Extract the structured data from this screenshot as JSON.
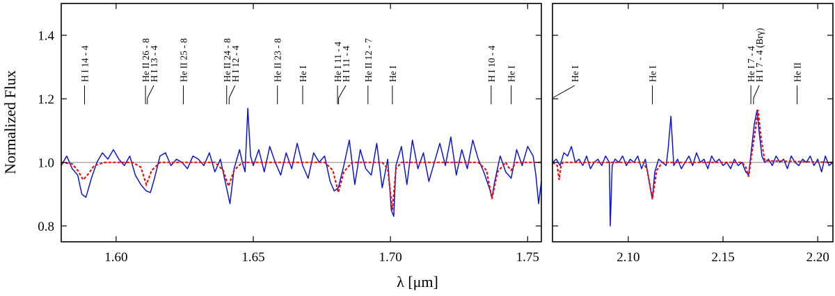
{
  "chart_data": {
    "type": "line",
    "ylabel": "Normalized Flux",
    "xlabel": "λ [μm]",
    "colors": {
      "observed": "#0a14d8",
      "model": "#e8100e",
      "continuum": "#a8a8a8",
      "frame": "#000000"
    },
    "panels": [
      {
        "id": "H-band",
        "xlim": [
          1.58,
          1.755
        ],
        "ylim": [
          0.75,
          1.5
        ],
        "xticks": [
          1.6,
          1.65,
          1.7,
          1.75
        ],
        "xtick_labels": [
          "1.60",
          "1.65",
          "1.70",
          "1.75"
        ],
        "yticks": [
          0.8,
          1.0,
          1.2,
          1.4
        ],
        "ytick_labels": [
          "0.8",
          "1.0",
          "1.2",
          "1.4"
        ],
        "continuum": 1.0,
        "lines": [
          {
            "label": "H I 14 - 4",
            "x": 1.5885
          },
          {
            "label": "He II 26 - 8",
            "x": 1.6107
          },
          {
            "label": "H I 13 - 4",
            "x": 1.6114
          },
          {
            "label": "He II 25 - 8",
            "x": 1.6245
          },
          {
            "label": "He II 24 - 8",
            "x": 1.6403
          },
          {
            "label": "H I 12 - 4",
            "x": 1.6412
          },
          {
            "label": "He II 23 - 8",
            "x": 1.6588
          },
          {
            "label": "He I",
            "x": 1.668
          },
          {
            "label": "He I 11 - 4",
            "x": 1.6807
          },
          {
            "label": "H I 11 - 4",
            "x": 1.6811
          },
          {
            "label": "He II 12 - 7",
            "x": 1.6918
          },
          {
            "label": "He I",
            "x": 1.7007
          },
          {
            "label": "H I 10 - 4",
            "x": 1.7367
          },
          {
            "label": "He I",
            "x": 1.744
          }
        ],
        "model": {
          "name": "model",
          "x": [
            1.58,
            1.584,
            1.586,
            1.588,
            1.59,
            1.592,
            1.596,
            1.606,
            1.609,
            1.611,
            1.613,
            1.616,
            1.636,
            1.639,
            1.641,
            1.643,
            1.646,
            1.676,
            1.679,
            1.681,
            1.683,
            1.686,
            1.697,
            1.699,
            1.7007,
            1.702,
            1.704,
            1.732,
            1.735,
            1.737,
            1.739,
            1.742,
            1.743,
            1.744,
            1.745,
            1.746,
            1.755
          ],
          "y": [
            1.0,
            0.995,
            0.975,
            0.945,
            0.965,
            0.99,
            1.0,
            1.0,
            0.985,
            0.93,
            0.975,
            1.0,
            1.0,
            0.975,
            0.925,
            0.975,
            1.0,
            1.0,
            0.975,
            0.905,
            0.97,
            1.0,
            1.0,
            0.98,
            0.85,
            0.98,
            1.0,
            1.0,
            0.975,
            0.885,
            0.97,
            1.0,
            0.985,
            0.975,
            0.99,
            1.0,
            1.0
          ]
        },
        "observed": {
          "name": "observed",
          "x": [
            1.58,
            1.582,
            1.584,
            1.586,
            1.5875,
            1.589,
            1.591,
            1.593,
            1.595,
            1.597,
            1.599,
            1.601,
            1.603,
            1.605,
            1.607,
            1.609,
            1.611,
            1.6125,
            1.614,
            1.616,
            1.618,
            1.62,
            1.622,
            1.624,
            1.626,
            1.628,
            1.63,
            1.632,
            1.634,
            1.636,
            1.638,
            1.64,
            1.6415,
            1.643,
            1.645,
            1.646,
            1.647,
            1.648,
            1.649,
            1.65,
            1.652,
            1.654,
            1.656,
            1.658,
            1.66,
            1.662,
            1.664,
            1.666,
            1.668,
            1.67,
            1.672,
            1.674,
            1.676,
            1.678,
            1.6795,
            1.681,
            1.683,
            1.685,
            1.687,
            1.689,
            1.691,
            1.693,
            1.695,
            1.697,
            1.699,
            1.7003,
            1.7012,
            1.702,
            1.704,
            1.706,
            1.708,
            1.71,
            1.712,
            1.714,
            1.716,
            1.718,
            1.72,
            1.722,
            1.724,
            1.726,
            1.728,
            1.73,
            1.732,
            1.734,
            1.736,
            1.737,
            1.738,
            1.74,
            1.742,
            1.744,
            1.746,
            1.748,
            1.75,
            1.752,
            1.753,
            1.754,
            1.755
          ],
          "y": [
            0.99,
            1.02,
            0.98,
            0.96,
            0.9,
            0.89,
            0.95,
            1.0,
            1.03,
            1.01,
            1.04,
            1.01,
            0.99,
            1.02,
            0.96,
            0.93,
            0.91,
            0.905,
            0.95,
            1.02,
            1.03,
            0.99,
            1.01,
            1.0,
            0.98,
            1.02,
            1.01,
            0.99,
            1.03,
            0.97,
            1.01,
            0.93,
            0.87,
            0.98,
            1.04,
            1.0,
            0.97,
            1.17,
            1.02,
            0.99,
            1.04,
            0.97,
            1.05,
            1.0,
            0.96,
            1.03,
            0.98,
            1.06,
            0.99,
            0.95,
            1.03,
            1.0,
            1.02,
            0.94,
            0.91,
            0.92,
            0.99,
            1.07,
            0.93,
            1.04,
            0.98,
            0.96,
            1.06,
            0.92,
            1.01,
            0.85,
            0.83,
            0.99,
            1.05,
            0.93,
            1.07,
            0.98,
            1.03,
            0.94,
            1.0,
            1.06,
            0.99,
            1.08,
            0.96,
            1.04,
            0.98,
            1.07,
            1.01,
            0.97,
            0.92,
            0.89,
            0.94,
            1.02,
            0.97,
            0.95,
            1.04,
            0.99,
            1.05,
            1.02,
            0.96,
            0.87,
            0.94
          ]
        }
      },
      {
        "id": "K-band",
        "xlim": [
          2.06,
          2.208
        ],
        "ylim": [
          0.75,
          1.5
        ],
        "xticks": [
          2.1,
          2.15,
          2.2
        ],
        "xtick_labels": [
          "2.10",
          "2.15",
          "2.20"
        ],
        "yticks": [
          0.8,
          1.0,
          1.2,
          1.4
        ],
        "continuum": 1.0,
        "lines": [
          {
            "label": "He I",
            "x": 2.06
          },
          {
            "label": "He I",
            "x": 2.1127
          },
          {
            "label": "He I 7 - 4",
            "x": 2.1647
          },
          {
            "label": "H I 7 - 4 (Brγ)",
            "x": 2.1661
          },
          {
            "label": "He II",
            "x": 2.1891
          }
        ],
        "model": {
          "name": "model",
          "x": [
            2.06,
            2.0625,
            2.0635,
            2.0645,
            2.0655,
            2.068,
            2.108,
            2.11,
            2.1127,
            2.115,
            2.118,
            2.16,
            2.162,
            2.1635,
            2.165,
            2.1665,
            2.1685,
            2.17,
            2.172,
            2.208
          ],
          "y": [
            1.0,
            0.99,
            0.945,
            0.99,
            1.0,
            1.0,
            1.0,
            0.975,
            0.885,
            0.975,
            1.0,
            1.0,
            0.985,
            0.955,
            1.02,
            1.08,
            1.165,
            1.08,
            1.005,
            1.0
          ]
        },
        "observed": {
          "name": "observed",
          "x": [
            2.06,
            2.062,
            2.064,
            2.066,
            2.068,
            2.07,
            2.072,
            2.074,
            2.076,
            2.078,
            2.08,
            2.082,
            2.084,
            2.086,
            2.088,
            2.09,
            2.0905,
            2.0915,
            2.093,
            2.095,
            2.097,
            2.099,
            2.101,
            2.103,
            2.105,
            2.107,
            2.109,
            2.111,
            2.1127,
            2.114,
            2.116,
            2.118,
            2.12,
            2.121,
            2.1225,
            2.124,
            2.126,
            2.128,
            2.13,
            2.132,
            2.134,
            2.136,
            2.138,
            2.14,
            2.142,
            2.144,
            2.146,
            2.148,
            2.15,
            2.152,
            2.154,
            2.156,
            2.158,
            2.16,
            2.162,
            2.1635,
            2.165,
            2.1665,
            2.168,
            2.169,
            2.1705,
            2.172,
            2.174,
            2.176,
            2.178,
            2.18,
            2.182,
            2.184,
            2.186,
            2.188,
            2.19,
            2.192,
            2.194,
            2.196,
            2.198,
            2.2,
            2.202,
            2.204,
            2.206,
            2.208
          ],
          "y": [
            1.0,
            1.01,
            0.99,
            1.03,
            1.02,
            1.05,
            1.0,
            1.01,
            0.99,
            1.02,
            0.98,
            1.0,
            1.01,
            0.99,
            1.02,
            1.0,
            0.8,
            0.99,
            1.01,
            1.0,
            1.02,
            0.99,
            1.01,
            1.0,
            1.02,
            0.98,
            1.01,
            0.94,
            0.885,
            0.97,
            1.01,
            1.0,
            0.99,
            1.04,
            1.145,
            0.99,
            1.01,
            0.98,
            1.0,
            1.02,
            0.99,
            1.03,
            1.0,
            1.01,
            0.98,
            1.02,
            1.0,
            1.01,
            0.99,
            1.0,
            0.98,
            1.01,
            0.99,
            1.0,
            0.97,
            0.96,
            1.04,
            1.12,
            1.165,
            1.1,
            1.02,
            1.0,
            1.01,
            0.99,
            1.02,
            1.0,
            1.01,
            0.98,
            1.02,
            1.0,
            0.99,
            1.01,
            1.0,
            1.02,
            0.99,
            1.01,
            0.97,
            1.02,
            0.99,
            1.0
          ]
        }
      }
    ]
  }
}
